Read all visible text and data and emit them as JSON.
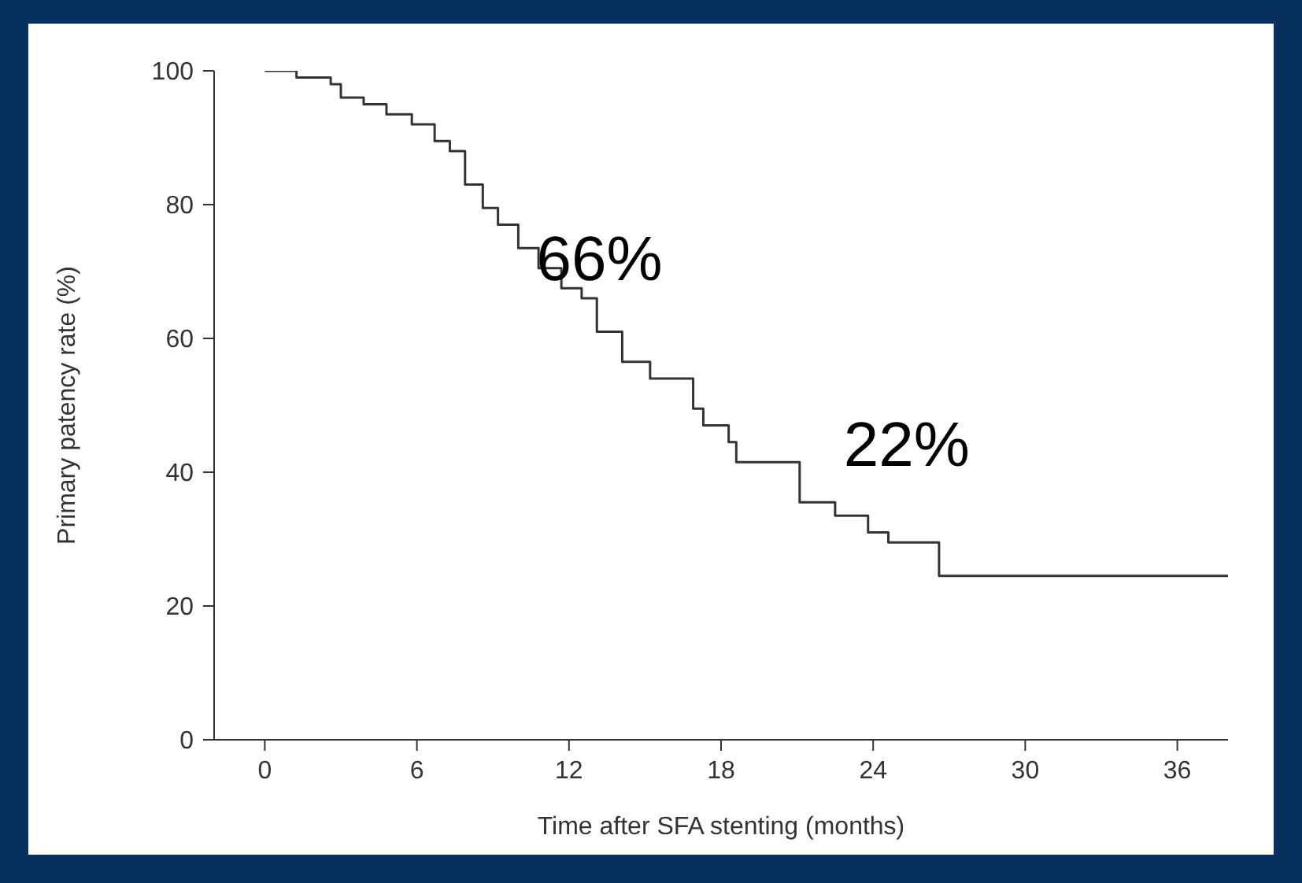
{
  "chart_data": {
    "type": "step",
    "xlabel": "Time after SFA stenting (months)",
    "ylabel": "Primary patency rate (%)",
    "x": [
      0,
      1.25,
      2.6,
      3.0,
      3.9,
      4.8,
      5.8,
      6.7,
      7.3,
      7.9,
      8.6,
      9.2,
      10.0,
      10.8,
      11.7,
      12.5,
      13.1,
      14.1,
      15.2,
      16.9,
      17.3,
      18.3,
      18.6,
      21.1,
      22.5,
      23.8,
      24.6,
      26.6,
      38
    ],
    "series": [
      {
        "color": "#333333",
        "values": [
          100,
          99,
          98,
          96,
          95,
          93.5,
          92,
          89.5,
          88,
          83,
          79.5,
          77,
          73.5,
          70.5,
          67.5,
          66,
          61,
          56.5,
          54,
          49.5,
          47,
          44.5,
          41.5,
          35.5,
          33.5,
          31,
          29.5,
          24.5,
          24.5
        ]
      }
    ],
    "xlim": [
      -2,
      38
    ],
    "xticks": [
      0,
      6,
      12,
      18,
      24,
      30,
      36
    ],
    "ylim": [
      0,
      100
    ],
    "yticks": [
      0,
      20,
      40,
      60,
      80,
      100
    ],
    "grid": false,
    "marker": "none",
    "line_style": "solid",
    "annotations": [
      "66%",
      "22%"
    ]
  }
}
